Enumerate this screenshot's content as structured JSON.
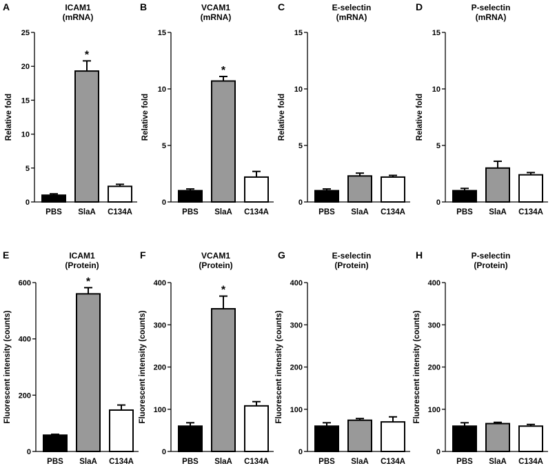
{
  "figure": {
    "categories": [
      "PBS",
      "SlaA",
      "C134A"
    ],
    "bar_colors": {
      "PBS": "#000000",
      "SlaA": "#999999",
      "C134A": "#ffffff"
    },
    "significance_marker": "*"
  },
  "chart_data": [
    {
      "panel": "A",
      "type": "bar",
      "title": [
        "ICAM1",
        "(mRNA)"
      ],
      "categories": [
        "PBS",
        "SlaA",
        "C134A"
      ],
      "values": [
        1.0,
        19.3,
        2.3
      ],
      "errors": [
        0.2,
        1.5,
        0.3
      ],
      "significant": [
        false,
        true,
        false
      ],
      "ylabel": "Relative fold",
      "ylim": [
        0,
        25
      ],
      "yticks": [
        0,
        5,
        10,
        15,
        20,
        25
      ]
    },
    {
      "panel": "B",
      "type": "bar",
      "title": [
        "VCAM1",
        "(mRNA)"
      ],
      "categories": [
        "PBS",
        "SlaA",
        "C134A"
      ],
      "values": [
        1.0,
        10.7,
        2.2
      ],
      "errors": [
        0.15,
        0.4,
        0.5
      ],
      "significant": [
        false,
        true,
        false
      ],
      "ylabel": "Relative fold",
      "ylim": [
        0,
        15
      ],
      "yticks": [
        0,
        5,
        10,
        15
      ]
    },
    {
      "panel": "C",
      "type": "bar",
      "title": [
        "E-selectin",
        "(mRNA)"
      ],
      "categories": [
        "PBS",
        "SlaA",
        "C134A"
      ],
      "values": [
        1.0,
        2.3,
        2.2
      ],
      "errors": [
        0.15,
        0.25,
        0.15
      ],
      "significant": [
        false,
        false,
        false
      ],
      "ylabel": "Relative fold",
      "ylim": [
        0,
        15
      ],
      "yticks": [
        0,
        5,
        10,
        15
      ]
    },
    {
      "panel": "D",
      "type": "bar",
      "title": [
        "P-selectin",
        "(mRNA)"
      ],
      "categories": [
        "PBS",
        "SlaA",
        "C134A"
      ],
      "values": [
        1.0,
        3.0,
        2.4
      ],
      "errors": [
        0.2,
        0.6,
        0.2
      ],
      "significant": [
        false,
        false,
        false
      ],
      "ylabel": "Relative fold",
      "ylim": [
        0,
        15
      ],
      "yticks": [
        0,
        5,
        10,
        15
      ]
    },
    {
      "panel": "E",
      "type": "bar",
      "title": [
        "ICAM1",
        "(Protein)"
      ],
      "categories": [
        "PBS",
        "SlaA",
        "C134A"
      ],
      "values": [
        58,
        560,
        147
      ],
      "errors": [
        3,
        22,
        18
      ],
      "significant": [
        false,
        true,
        false
      ],
      "ylabel": "Fluorescent intensity (counts)",
      "ylim": [
        0,
        600
      ],
      "yticks": [
        0,
        200,
        400,
        600
      ]
    },
    {
      "panel": "F",
      "type": "bar",
      "title": [
        "VCAM1",
        "(Protein)"
      ],
      "categories": [
        "PBS",
        "SlaA",
        "C134A"
      ],
      "values": [
        60,
        338,
        108
      ],
      "errors": [
        8,
        30,
        10
      ],
      "significant": [
        false,
        true,
        false
      ],
      "ylabel": "Fluorescent intensity (counts)",
      "ylim": [
        0,
        400
      ],
      "yticks": [
        0,
        100,
        200,
        300,
        400
      ]
    },
    {
      "panel": "G",
      "type": "bar",
      "title": [
        "E-selectin",
        "(Protein)"
      ],
      "categories": [
        "PBS",
        "SlaA",
        "C134A"
      ],
      "values": [
        60,
        74,
        70
      ],
      "errors": [
        8,
        4,
        12
      ],
      "significant": [
        false,
        false,
        false
      ],
      "ylabel": "Fluorescent intensity (counts)",
      "ylim": [
        0,
        400
      ],
      "yticks": [
        0,
        100,
        200,
        300,
        400
      ]
    },
    {
      "panel": "H",
      "type": "bar",
      "title": [
        "P-selectin",
        "(Protein)"
      ],
      "categories": [
        "PBS",
        "SlaA",
        "C134A"
      ],
      "values": [
        60,
        66,
        60
      ],
      "errors": [
        8,
        3,
        4
      ],
      "significant": [
        false,
        false,
        false
      ],
      "ylabel": "Fluorescent intensity (counts)",
      "ylim": [
        0,
        400
      ],
      "yticks": [
        0,
        100,
        200,
        300,
        400
      ]
    }
  ]
}
